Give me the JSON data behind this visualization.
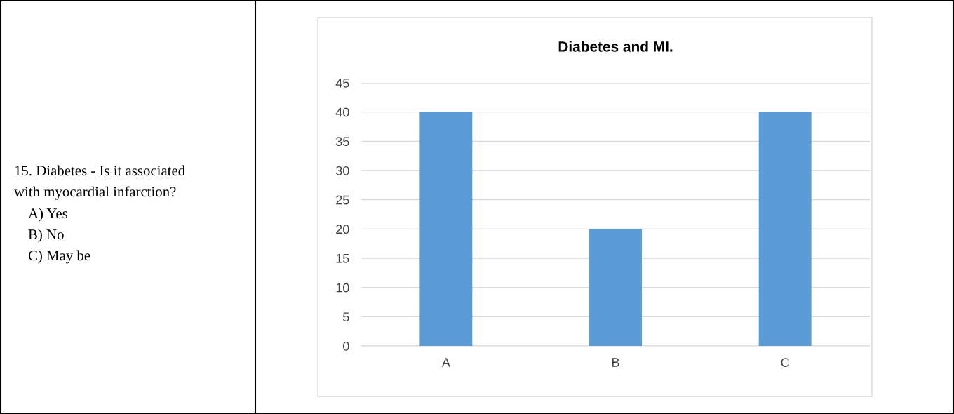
{
  "chart_data": {
    "type": "bar",
    "title": "Diabetes and MI.",
    "categories": [
      "A",
      "B",
      "C"
    ],
    "values": [
      40,
      20,
      40
    ],
    "color": "#5b9bd5",
    "ylim": [
      0,
      45
    ],
    "yticks": [
      0,
      5,
      10,
      15,
      20,
      25,
      30,
      35,
      40,
      45
    ],
    "grid": "y",
    "annotations": [
      "15. Diabetes - Is it associated",
      "with myocardial infarction?",
      "A) Yes",
      "B) No",
      "C) May be"
    ]
  }
}
